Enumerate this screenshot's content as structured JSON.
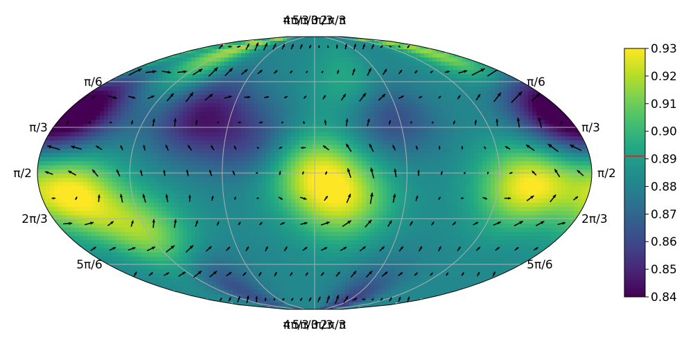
{
  "chart_data": {
    "type": "heatmap",
    "title": "",
    "projection": "robinson-like pseudo-cylindrical (full sphere)",
    "colormap": "viridis",
    "has_vector_field": true,
    "grid": true,
    "top_longitude_labels": [
      "π",
      "4π/3",
      "5π/3",
      "0",
      "π/3",
      "2π/3",
      "π"
    ],
    "bottom_longitude_labels": [
      "π",
      "4π/3",
      "5π/3",
      "0",
      "π/3",
      "2π/3",
      "π"
    ],
    "left_latitude_labels": [
      "π/6",
      "π/3",
      "π/2",
      "2π/3",
      "5π/6"
    ],
    "right_latitude_labels": [
      "π/6",
      "π/3",
      "π/2",
      "2π/3",
      "5π/6"
    ],
    "colorbar": {
      "vmin": 0.84,
      "vmax": 0.93,
      "ticks": [
        "0.84",
        "0.85",
        "0.86",
        "0.87",
        "0.88",
        "0.89",
        "0.90",
        "0.91",
        "0.92",
        "0.93"
      ],
      "marker_value": 0.891,
      "marker_color": "#d62728",
      "placement": "right"
    },
    "features": [
      {
        "kind": "max",
        "lon_deg": -160,
        "colat_deg": 103,
        "value": 0.93
      },
      {
        "kind": "max",
        "lon_deg": 140,
        "colat_deg": 98,
        "value": 0.93
      },
      {
        "kind": "max",
        "lon_deg": 0,
        "colat_deg": 88,
        "value": 0.92
      },
      {
        "kind": "max",
        "lon_deg": 20,
        "colat_deg": 110,
        "value": 0.915
      },
      {
        "kind": "max",
        "lon_deg": -120,
        "colat_deg": 130,
        "value": 0.915
      },
      {
        "kind": "max",
        "lon_deg": 160,
        "colat_deg": 10,
        "value": 0.92
      },
      {
        "kind": "max",
        "lon_deg": -120,
        "colat_deg": 5,
        "value": 0.92
      },
      {
        "kind": "max",
        "lon_deg": 35,
        "colat_deg": 35,
        "value": 0.905
      },
      {
        "kind": "min",
        "lon_deg": -165,
        "colat_deg": 50,
        "value": 0.848
      },
      {
        "kind": "min",
        "lon_deg": -80,
        "colat_deg": 52,
        "value": 0.847
      },
      {
        "kind": "min",
        "lon_deg": 50,
        "colat_deg": 50,
        "value": 0.852
      },
      {
        "kind": "min",
        "lon_deg": 170,
        "colat_deg": 50,
        "value": 0.845
      },
      {
        "kind": "min",
        "lon_deg": 60,
        "colat_deg": 180,
        "value": 0.855
      },
      {
        "kind": "min",
        "lon_deg": -95,
        "colat_deg": 165,
        "value": 0.86
      },
      {
        "kind": "min",
        "lon_deg": -40,
        "colat_deg": 70,
        "value": 0.862
      }
    ]
  }
}
